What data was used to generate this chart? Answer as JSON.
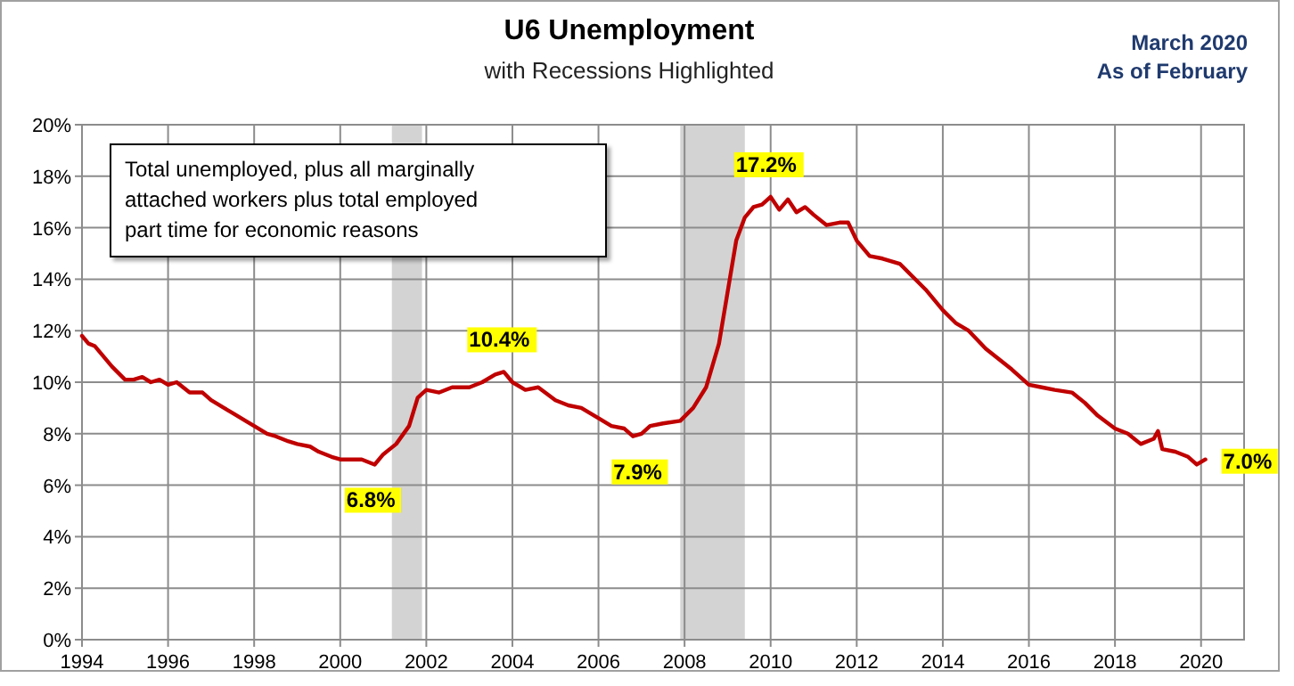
{
  "chart_data": {
    "type": "line",
    "title": "U6 Unemployment",
    "subtitle": "with Recessions Highlighted",
    "annotations": [
      "Total unemployed, plus all marginally attached workers plus total employed part time for economic reasons",
      "March 2020",
      "As of February",
      {
        "text": "6.8%",
        "x": 2000.8,
        "y": 6.8
      },
      {
        "text": "10.4%",
        "x": 2003.8,
        "y": 10.4
      },
      {
        "text": "7.9%",
        "x": 2007.0,
        "y": 7.9
      },
      {
        "text": "17.2%",
        "x": 2010.0,
        "y": 17.2
      },
      {
        "text": "7.0%",
        "x": 2020.1,
        "y": 7.0
      }
    ],
    "series": [
      {
        "color": "#c00000",
        "x": [
          1994.0,
          1994.15,
          1994.3,
          1994.5,
          1994.7,
          1995.0,
          1995.2,
          1995.4,
          1995.6,
          1995.8,
          1996.0,
          1996.2,
          1996.5,
          1996.8,
          1997.0,
          1997.3,
          1997.5,
          1997.8,
          1998.0,
          1998.3,
          1998.5,
          1998.8,
          1999.0,
          1999.3,
          1999.5,
          1999.8,
          2000.0,
          2000.3,
          2000.5,
          2000.8,
          2001.0,
          2001.3,
          2001.6,
          2001.8,
          2002.0,
          2002.3,
          2002.6,
          2003.0,
          2003.3,
          2003.6,
          2003.8,
          2004.0,
          2004.3,
          2004.6,
          2005.0,
          2005.3,
          2005.6,
          2006.0,
          2006.3,
          2006.6,
          2006.8,
          2007.0,
          2007.2,
          2007.5,
          2007.9,
          2008.2,
          2008.5,
          2008.8,
          2009.0,
          2009.2,
          2009.4,
          2009.6,
          2009.8,
          2010.0,
          2010.2,
          2010.4,
          2010.6,
          2010.8,
          2011.0,
          2011.3,
          2011.6,
          2011.8,
          2012.0,
          2012.3,
          2012.6,
          2013.0,
          2013.3,
          2013.6,
          2014.0,
          2014.3,
          2014.6,
          2015.0,
          2015.3,
          2015.6,
          2016.0,
          2016.3,
          2016.6,
          2017.0,
          2017.3,
          2017.6,
          2018.0,
          2018.3,
          2018.6,
          2018.9,
          2019.0,
          2019.1,
          2019.4,
          2019.7,
          2019.9,
          2020.1
        ],
        "values": [
          11.8,
          11.5,
          11.4,
          11.0,
          10.6,
          10.1,
          10.1,
          10.2,
          10.0,
          10.1,
          9.9,
          10.0,
          9.6,
          9.6,
          9.3,
          9.0,
          8.8,
          8.5,
          8.3,
          8.0,
          7.9,
          7.7,
          7.6,
          7.5,
          7.3,
          7.1,
          7.0,
          7.0,
          7.0,
          6.8,
          7.2,
          7.6,
          8.3,
          9.4,
          9.7,
          9.6,
          9.8,
          9.8,
          10.0,
          10.3,
          10.4,
          10.0,
          9.7,
          9.8,
          9.3,
          9.1,
          9.0,
          8.6,
          8.3,
          8.2,
          7.9,
          8.0,
          8.3,
          8.4,
          8.5,
          9.0,
          9.8,
          11.5,
          13.5,
          15.5,
          16.4,
          16.8,
          16.9,
          17.2,
          16.7,
          17.1,
          16.6,
          16.8,
          16.5,
          16.1,
          16.2,
          16.2,
          15.5,
          14.9,
          14.8,
          14.6,
          14.1,
          13.6,
          12.8,
          12.3,
          12.0,
          11.3,
          10.9,
          10.5,
          9.9,
          9.8,
          9.7,
          9.6,
          9.2,
          8.7,
          8.2,
          8.0,
          7.6,
          7.8,
          8.1,
          7.4,
          7.3,
          7.1,
          6.8,
          7.0
        ]
      }
    ],
    "bands": [
      {
        "axis": "x",
        "from": 2001.2,
        "to": 2001.9,
        "color": "#d3d3d3"
      },
      {
        "axis": "x",
        "from": 2007.9,
        "to": 2009.4,
        "color": "#d3d3d3"
      }
    ],
    "xlim": [
      1994,
      2021
    ],
    "xticks": [
      1994,
      1996,
      1998,
      2000,
      2002,
      2004,
      2006,
      2008,
      2010,
      2012,
      2014,
      2016,
      2018,
      2020
    ],
    "ylim": [
      0,
      20
    ],
    "yticks": [
      {
        "value": 0,
        "label": "0%"
      },
      {
        "value": 2,
        "label": "2%"
      },
      {
        "value": 4,
        "label": "4%"
      },
      {
        "value": 6,
        "label": "6%"
      },
      {
        "value": 8,
        "label": "8%"
      },
      {
        "value": 10,
        "label": "10%"
      },
      {
        "value": 12,
        "label": "12%"
      },
      {
        "value": 14,
        "label": "14%"
      },
      {
        "value": 16,
        "label": "16%"
      },
      {
        "value": 18,
        "label": "18%"
      },
      {
        "value": 20,
        "label": "20%"
      }
    ],
    "grid": true,
    "line_style": "solid",
    "marker": "none"
  }
}
